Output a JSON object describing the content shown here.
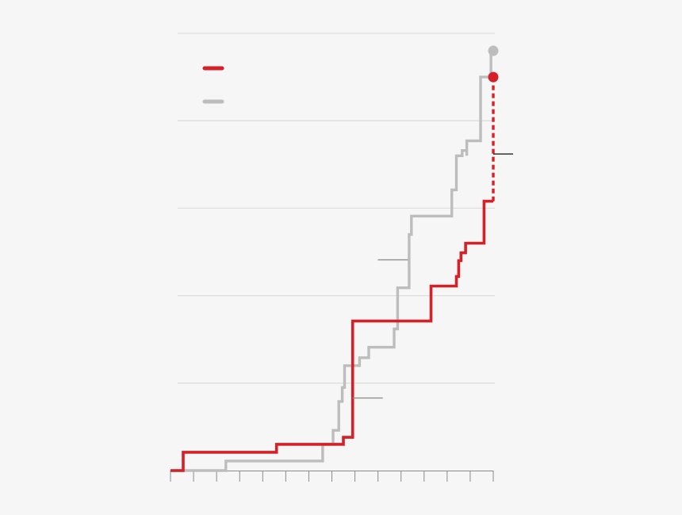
{
  "chart_data": {
    "type": "line",
    "step": true,
    "grid": true,
    "x_ticks": 15,
    "series": [
      {
        "color": "#d62027",
        "points": [
          [
            0,
            0.0
          ],
          [
            0.55,
            0.0
          ],
          [
            0.55,
            0.21
          ],
          [
            4.6,
            0.21
          ],
          [
            4.6,
            0.3
          ],
          [
            7.5,
            0.3
          ],
          [
            7.5,
            0.38
          ],
          [
            7.9,
            0.38
          ],
          [
            7.9,
            1.71
          ],
          [
            11.3,
            1.71
          ],
          [
            11.3,
            2.11
          ],
          [
            12.4,
            2.11
          ],
          [
            12.4,
            2.22
          ],
          [
            12.5,
            2.22
          ],
          [
            12.5,
            2.4
          ],
          [
            12.6,
            2.4
          ],
          [
            12.6,
            2.49
          ],
          [
            12.8,
            2.49
          ],
          [
            12.8,
            2.6
          ],
          [
            13.6,
            2.6
          ],
          [
            13.6,
            3.08
          ],
          [
            14.0,
            3.08
          ]
        ],
        "projection": [
          [
            14.0,
            3.08
          ],
          [
            14.0,
            4.5
          ]
        ],
        "end_marker": [
          14.0,
          4.5
        ]
      },
      {
        "color": "#bdbdbd",
        "points": [
          [
            0,
            0.0
          ],
          [
            2.4,
            0.0
          ],
          [
            2.4,
            0.11
          ],
          [
            6.6,
            0.11
          ],
          [
            6.6,
            0.3
          ],
          [
            7.05,
            0.3
          ],
          [
            7.05,
            0.46
          ],
          [
            7.3,
            0.46
          ],
          [
            7.3,
            0.79
          ],
          [
            7.45,
            0.79
          ],
          [
            7.45,
            0.95
          ],
          [
            7.55,
            0.95
          ],
          [
            7.55,
            1.2
          ],
          [
            8.2,
            1.2
          ],
          [
            8.2,
            1.29
          ],
          [
            8.6,
            1.29
          ],
          [
            8.6,
            1.41
          ],
          [
            9.7,
            1.41
          ],
          [
            9.7,
            1.62
          ],
          [
            9.85,
            1.62
          ],
          [
            9.85,
            2.09
          ],
          [
            10.35,
            2.09
          ],
          [
            10.35,
            2.7
          ],
          [
            10.45,
            2.7
          ],
          [
            10.45,
            2.91
          ],
          [
            12.2,
            2.91
          ],
          [
            12.2,
            3.21
          ],
          [
            12.4,
            3.21
          ],
          [
            12.4,
            3.6
          ],
          [
            12.65,
            3.6
          ],
          [
            12.65,
            3.66
          ],
          [
            12.85,
            3.66
          ],
          [
            12.85,
            3.6
          ],
          [
            12.85,
            3.77
          ],
          [
            13.45,
            3.77
          ],
          [
            13.45,
            4.5
          ],
          [
            13.9,
            4.5
          ],
          [
            13.9,
            4.8
          ],
          [
            14.0,
            4.8
          ]
        ],
        "end_marker": [
          14.0,
          4.8
        ]
      }
    ],
    "xlim": [
      0,
      14
    ],
    "ylim": [
      0,
      5
    ],
    "ytick_values": [
      1,
      2,
      3,
      4,
      5
    ],
    "annotations": [
      {
        "kind": "gray",
        "at": [
          10.3,
          2.41
        ],
        "toward": "left"
      },
      {
        "kind": "gray",
        "at": [
          7.9,
          0.83
        ],
        "toward": "right"
      },
      {
        "kind": "dark",
        "at": [
          14.0,
          3.62
        ],
        "toward": "right"
      }
    ],
    "legend": {
      "placement": "top-left",
      "entries": [
        {
          "color": "#d62027"
        },
        {
          "color": "#bdbdbd"
        }
      ]
    }
  }
}
